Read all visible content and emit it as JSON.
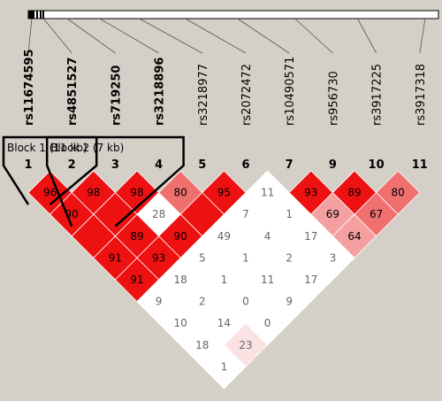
{
  "colors": {
    "background": "#d4d0c8",
    "strong_ld": "#ee1111",
    "strong_ld_dark": "#e00000",
    "medium_ld": "#f07070",
    "light_ld": "#f4a0a0",
    "weak_ld": "#fbe2e2",
    "no_ld": "#ffffff",
    "text_on_red": "#000000",
    "text_on_white": "#666666"
  },
  "snps": [
    {
      "id": "rs11674595",
      "bold": true
    },
    {
      "id": "rs4851527",
      "bold": true
    },
    {
      "id": "rs719250",
      "bold": true
    },
    {
      "id": "rs3218896",
      "bold": true
    },
    {
      "id": "rs3218977",
      "bold": false
    },
    {
      "id": "rs2072472",
      "bold": false
    },
    {
      "id": "rs10490571",
      "bold": false
    },
    {
      "id": "rs956730",
      "bold": false
    },
    {
      "id": "rs3917225",
      "bold": false
    },
    {
      "id": "rs3917318",
      "bold": false
    }
  ],
  "marker_numbers": [
    "1",
    "2",
    "3",
    "4",
    "5",
    "6",
    "7",
    "9",
    "10",
    "11"
  ],
  "blocks": [
    {
      "label": "Block 1 (11 kb)",
      "first": 0,
      "last": 1
    },
    {
      "label": "Block 2 (7 kb)",
      "first": 1,
      "last": 3
    }
  ],
  "ld_cells": [
    {
      "i": 0,
      "j": 1,
      "value": "96",
      "color": "#ee1111"
    },
    {
      "i": 1,
      "j": 2,
      "value": "98",
      "color": "#ee1111"
    },
    {
      "i": 2,
      "j": 3,
      "value": "98",
      "color": "#ee1111"
    },
    {
      "i": 3,
      "j": 4,
      "value": "80",
      "color": "#f07070"
    },
    {
      "i": 4,
      "j": 5,
      "value": "95",
      "color": "#ee1111"
    },
    {
      "i": 5,
      "j": 6,
      "value": "11",
      "color": "#ffffff"
    },
    {
      "i": 6,
      "j": 7,
      "value": "93",
      "color": "#ee1111"
    },
    {
      "i": 7,
      "j": 8,
      "value": "89",
      "color": "#ee1111"
    },
    {
      "i": 8,
      "j": 9,
      "value": "80",
      "color": "#f07070"
    },
    {
      "i": 0,
      "j": 2,
      "value": "90",
      "color": "#ee1111"
    },
    {
      "i": 1,
      "j": 3,
      "value": "",
      "color": "#ee1111"
    },
    {
      "i": 2,
      "j": 4,
      "value": "28",
      "color": "#ffffff"
    },
    {
      "i": 3,
      "j": 5,
      "value": "",
      "color": "#ee1111"
    },
    {
      "i": 4,
      "j": 6,
      "value": "7",
      "color": "#ffffff"
    },
    {
      "i": 5,
      "j": 7,
      "value": "1",
      "color": "#ffffff"
    },
    {
      "i": 6,
      "j": 8,
      "value": "69",
      "color": "#f4a0a0"
    },
    {
      "i": 7,
      "j": 9,
      "value": "67",
      "color": "#f07070"
    },
    {
      "i": 0,
      "j": 3,
      "value": "",
      "color": "#ee1111"
    },
    {
      "i": 1,
      "j": 4,
      "value": "89",
      "color": "#ee1111"
    },
    {
      "i": 2,
      "j": 5,
      "value": "90",
      "color": "#ee1111"
    },
    {
      "i": 3,
      "j": 6,
      "value": "49",
      "color": "#ffffff"
    },
    {
      "i": 4,
      "j": 7,
      "value": "4",
      "color": "#ffffff"
    },
    {
      "i": 5,
      "j": 8,
      "value": "17",
      "color": "#ffffff"
    },
    {
      "i": 6,
      "j": 9,
      "value": "64",
      "color": "#f4a0a0"
    },
    {
      "i": 0,
      "j": 4,
      "value": "91",
      "color": "#ee1111"
    },
    {
      "i": 1,
      "j": 5,
      "value": "93",
      "color": "#ee1111"
    },
    {
      "i": 2,
      "j": 6,
      "value": "5",
      "color": "#ffffff"
    },
    {
      "i": 3,
      "j": 7,
      "value": "1",
      "color": "#ffffff"
    },
    {
      "i": 4,
      "j": 8,
      "value": "2",
      "color": "#ffffff"
    },
    {
      "i": 5,
      "j": 9,
      "value": "3",
      "color": "#ffffff"
    },
    {
      "i": 0,
      "j": 5,
      "value": "91",
      "color": "#ee1111"
    },
    {
      "i": 1,
      "j": 6,
      "value": "18",
      "color": "#ffffff"
    },
    {
      "i": 2,
      "j": 7,
      "value": "1",
      "color": "#ffffff"
    },
    {
      "i": 3,
      "j": 8,
      "value": "11",
      "color": "#ffffff"
    },
    {
      "i": 4,
      "j": 9,
      "value": "17",
      "color": "#ffffff"
    },
    {
      "i": 0,
      "j": 6,
      "value": "9",
      "color": "#ffffff"
    },
    {
      "i": 1,
      "j": 7,
      "value": "2",
      "color": "#ffffff"
    },
    {
      "i": 2,
      "j": 8,
      "value": "0",
      "color": "#ffffff"
    },
    {
      "i": 3,
      "j": 9,
      "value": "9",
      "color": "#ffffff"
    },
    {
      "i": 0,
      "j": 7,
      "value": "10",
      "color": "#ffffff"
    },
    {
      "i": 1,
      "j": 8,
      "value": "14",
      "color": "#ffffff"
    },
    {
      "i": 2,
      "j": 9,
      "value": "0",
      "color": "#ffffff"
    },
    {
      "i": 0,
      "j": 8,
      "value": "18",
      "color": "#ffffff"
    },
    {
      "i": 1,
      "j": 9,
      "value": "23",
      "color": "#fbe2e2"
    },
    {
      "i": 0,
      "j": 9,
      "value": "1",
      "color": "#ffffff"
    }
  ]
}
